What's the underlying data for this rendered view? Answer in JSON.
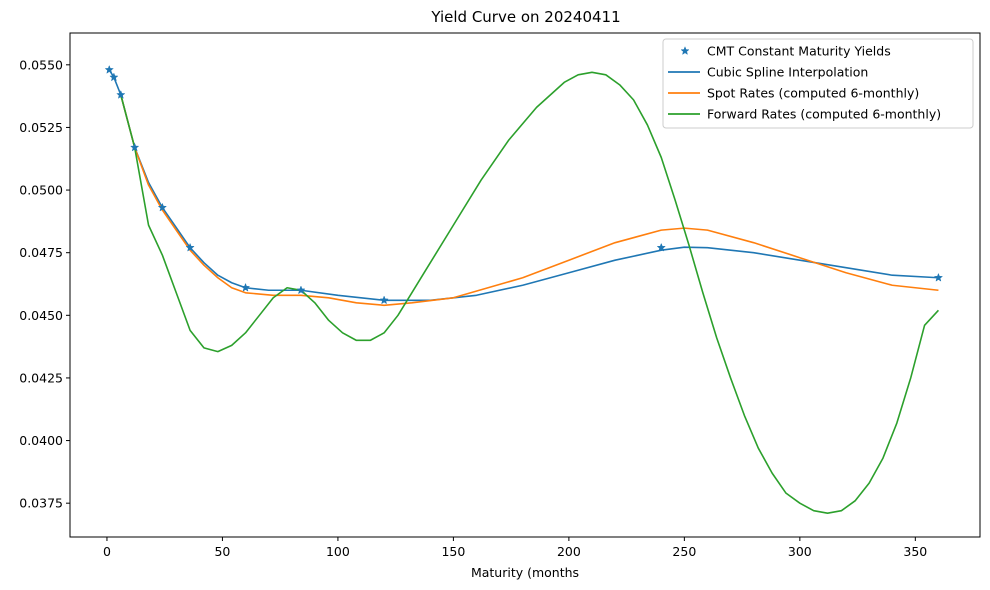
{
  "chart_data": {
    "type": "line",
    "title": "Yield Curve on 20240411",
    "xlabel": "Maturity (months",
    "ylabel": "",
    "xlim": [
      -16,
      378
    ],
    "ylim": [
      0.03615,
      0.05627
    ],
    "xticks": [
      0,
      50,
      100,
      150,
      200,
      250,
      300,
      350
    ],
    "xtick_labels": [
      "0",
      "50",
      "100",
      "150",
      "200",
      "250",
      "300",
      "350"
    ],
    "yticks": [
      0.0375,
      0.04,
      0.0425,
      0.045,
      0.0475,
      0.05,
      0.0525,
      0.055
    ],
    "ytick_labels": [
      "0.0375",
      "0.0400",
      "0.0425",
      "0.0450",
      "0.0475",
      "0.0500",
      "0.0525",
      "0.0550"
    ],
    "grid": false,
    "legend_position": "top-right",
    "series": [
      {
        "name": "CMT Constant Maturity Yields",
        "kind": "markers",
        "marker": "star",
        "color": "#1f77b4",
        "x": [
          1,
          3,
          6,
          12,
          24,
          36,
          60,
          84,
          120,
          240,
          360
        ],
        "y": [
          0.0548,
          0.0545,
          0.0538,
          0.0517,
          0.0493,
          0.0477,
          0.0461,
          0.046,
          0.0456,
          0.0477,
          0.0465
        ]
      },
      {
        "name": "Cubic Spline Interpolation",
        "kind": "line",
        "color": "#1f77b4",
        "x": [
          1,
          3,
          6,
          12,
          18,
          24,
          30,
          36,
          42,
          48,
          54,
          60,
          70,
          84,
          100,
          110,
          120,
          130,
          140,
          160,
          180,
          200,
          220,
          240,
          250,
          260,
          280,
          300,
          320,
          340,
          360
        ],
        "y": [
          0.0548,
          0.0545,
          0.0538,
          0.0517,
          0.0503,
          0.0493,
          0.0485,
          0.0477,
          0.0471,
          0.0466,
          0.0463,
          0.0461,
          0.046,
          0.046,
          0.0458,
          0.0457,
          0.0456,
          0.0456,
          0.0456,
          0.0458,
          0.0462,
          0.0467,
          0.0472,
          0.0476,
          0.04772,
          0.0477,
          0.0475,
          0.0472,
          0.0469,
          0.0466,
          0.0465
        ]
      },
      {
        "name": "Spot Rates (computed 6-monthly)",
        "kind": "line",
        "color": "#ff7f0e",
        "x": [
          6,
          12,
          18,
          24,
          30,
          36,
          42,
          48,
          54,
          60,
          72,
          84,
          96,
          108,
          120,
          132,
          150,
          180,
          200,
          220,
          240,
          250,
          260,
          280,
          300,
          320,
          340,
          360
        ],
        "y": [
          0.0538,
          0.0517,
          0.0502,
          0.0492,
          0.0484,
          0.0476,
          0.047,
          0.0465,
          0.0461,
          0.0459,
          0.0458,
          0.0458,
          0.0457,
          0.0455,
          0.0454,
          0.0455,
          0.0457,
          0.0465,
          0.0472,
          0.0479,
          0.0484,
          0.04848,
          0.0484,
          0.0479,
          0.0473,
          0.0467,
          0.0462,
          0.046
        ]
      },
      {
        "name": "Forward Rates (computed 6-monthly)",
        "kind": "line",
        "color": "#2ca02c",
        "x": [
          6,
          12,
          18,
          24,
          30,
          36,
          42,
          48,
          54,
          60,
          66,
          72,
          78,
          84,
          90,
          96,
          102,
          108,
          114,
          120,
          126,
          132,
          138,
          150,
          162,
          174,
          186,
          198,
          204,
          210,
          216,
          222,
          228,
          234,
          240,
          246,
          252,
          258,
          264,
          270,
          276,
          282,
          288,
          294,
          300,
          306,
          312,
          318,
          324,
          330,
          336,
          342,
          348,
          354,
          360
        ],
        "y": [
          0.0538,
          0.0517,
          0.0486,
          0.0474,
          0.0459,
          0.0444,
          0.0437,
          0.04355,
          0.0438,
          0.0443,
          0.045,
          0.0457,
          0.0461,
          0.046,
          0.0455,
          0.0448,
          0.0443,
          0.044,
          0.044,
          0.0443,
          0.045,
          0.0459,
          0.0468,
          0.0486,
          0.0504,
          0.052,
          0.0533,
          0.0543,
          0.0546,
          0.0547,
          0.0546,
          0.0542,
          0.0536,
          0.0526,
          0.0513,
          0.0496,
          0.0478,
          0.0459,
          0.0441,
          0.0425,
          0.041,
          0.0397,
          0.0387,
          0.0379,
          0.0375,
          0.0372,
          0.0371,
          0.0372,
          0.0376,
          0.0383,
          0.0393,
          0.0407,
          0.0425,
          0.0446,
          0.0452
        ]
      }
    ]
  }
}
